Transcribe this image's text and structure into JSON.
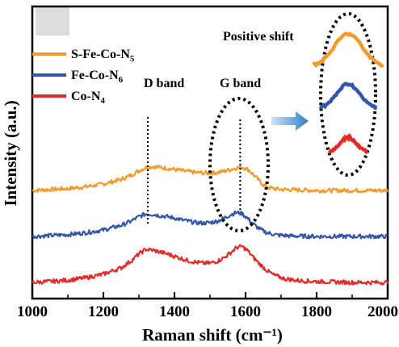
{
  "chart_data": {
    "type": "line",
    "title": "",
    "xlabel": "Raman shift (cm⁻¹)",
    "ylabel": "Intensity (a.u.)",
    "xlim": [
      1000,
      2000
    ],
    "x_ticks": [
      1000,
      1200,
      1400,
      1600,
      1800,
      2000
    ],
    "x_tick_labels": [
      "1000",
      "1200",
      "1400",
      "1600",
      "1800",
      "2000"
    ],
    "y_ticks_shown": false,
    "legend_position": "top-left",
    "series": [
      {
        "name": "S-Fe-Co-N5",
        "legend_main": "S-Fe-Co-N",
        "legend_sub": "5",
        "color": "#f39a2b",
        "offset": 2.0,
        "x": [
          1000,
          1050,
          1100,
          1150,
          1200,
          1250,
          1280,
          1300,
          1320,
          1340,
          1360,
          1380,
          1400,
          1420,
          1440,
          1460,
          1480,
          1500,
          1520,
          1540,
          1560,
          1580,
          1595,
          1610,
          1630,
          1650,
          1670,
          1700,
          1750,
          1800,
          1850,
          1900,
          1950,
          2000
        ],
        "y": [
          0.0,
          0.02,
          0.04,
          0.08,
          0.14,
          0.24,
          0.34,
          0.43,
          0.5,
          0.52,
          0.5,
          0.48,
          0.46,
          0.43,
          0.41,
          0.39,
          0.38,
          0.38,
          0.39,
          0.42,
          0.46,
          0.5,
          0.5,
          0.44,
          0.28,
          0.12,
          0.05,
          0.02,
          0.01,
          0.0,
          0.0,
          0.0,
          0.0,
          0.0
        ]
      },
      {
        "name": "Fe-Co-N6",
        "legend_main": "Fe-Co-N",
        "legend_sub": "6",
        "color": "#3556a8",
        "offset": 1.0,
        "x": [
          1000,
          1050,
          1100,
          1150,
          1200,
          1250,
          1280,
          1300,
          1320,
          1340,
          1360,
          1380,
          1400,
          1420,
          1440,
          1460,
          1480,
          1500,
          1520,
          1540,
          1560,
          1575,
          1590,
          1605,
          1620,
          1640,
          1660,
          1690,
          1730,
          1800,
          1850,
          1900,
          1950,
          2000
        ],
        "y": [
          0.0,
          0.02,
          0.04,
          0.08,
          0.14,
          0.24,
          0.34,
          0.43,
          0.49,
          0.48,
          0.45,
          0.43,
          0.4,
          0.36,
          0.33,
          0.3,
          0.29,
          0.3,
          0.33,
          0.4,
          0.48,
          0.52,
          0.5,
          0.4,
          0.28,
          0.16,
          0.08,
          0.03,
          0.01,
          0.0,
          0.0,
          0.0,
          0.0,
          0.0
        ]
      },
      {
        "name": "Co-N4",
        "legend_main": "Co-N",
        "legend_sub": "4",
        "color": "#e12c2a",
        "offset": 0.0,
        "x": [
          1000,
          1050,
          1100,
          1150,
          1200,
          1250,
          1280,
          1300,
          1320,
          1340,
          1360,
          1380,
          1400,
          1420,
          1440,
          1460,
          1480,
          1500,
          1520,
          1540,
          1560,
          1575,
          1590,
          1605,
          1620,
          1640,
          1660,
          1680,
          1710,
          1750,
          1800,
          1850,
          1900,
          1950,
          2000
        ],
        "y": [
          0.0,
          0.02,
          0.05,
          0.1,
          0.18,
          0.32,
          0.48,
          0.62,
          0.72,
          0.7,
          0.66,
          0.62,
          0.57,
          0.52,
          0.47,
          0.44,
          0.42,
          0.42,
          0.46,
          0.54,
          0.66,
          0.76,
          0.78,
          0.7,
          0.56,
          0.4,
          0.26,
          0.16,
          0.08,
          0.04,
          0.02,
          0.01,
          0.0,
          0.0,
          0.0
        ]
      }
    ],
    "annotations": {
      "d_band": {
        "text": "D band",
        "x": 1325
      },
      "g_band": {
        "text": "G band",
        "x": 1585
      },
      "positive_shift": {
        "text": "Positive shift"
      }
    }
  }
}
